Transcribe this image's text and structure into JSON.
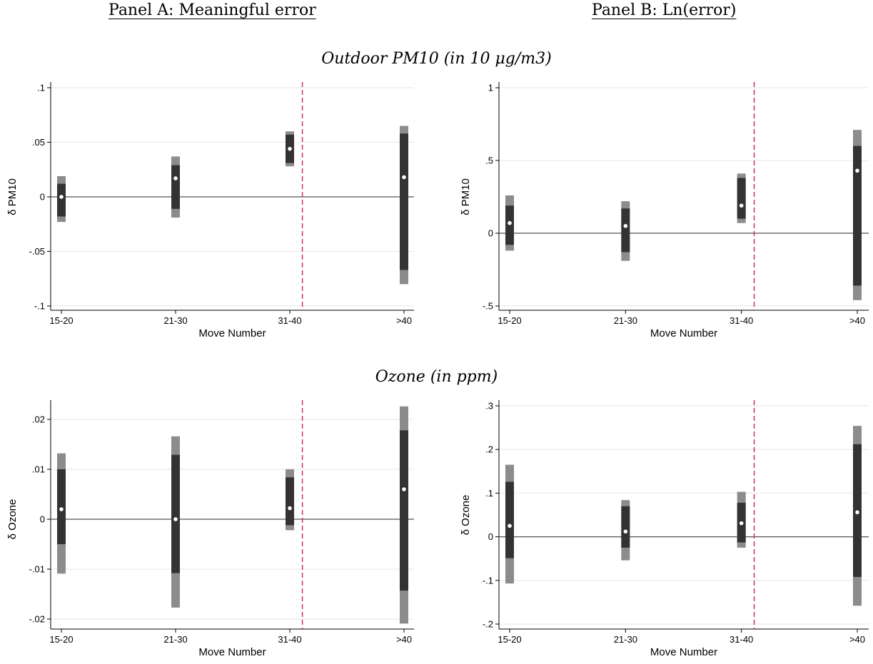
{
  "panels": {
    "a_title": "Panel A: Meaningful error",
    "b_title": "Panel B: Ln(error)"
  },
  "sections": {
    "top": "Outdoor PM10 (in 10 μg/m3)",
    "bottom": "Ozone (in ppm)"
  },
  "colors": {
    "outer_ci": "#8c8c8c",
    "inner_ci": "#333333",
    "point_fill": "#ffffff",
    "zero_line": "#555555",
    "cutoff_line": "#c8325a",
    "grid": "#e6e6e6"
  },
  "chart_data": [
    {
      "type": "scatter",
      "panel": "Panel A: Meaningful error",
      "section": "Outdoor PM10 (in 10 μg/m3)",
      "xlabel": "Move Number",
      "ylabel": "δ PM10",
      "categories": [
        "15-20",
        "21-30",
        "31-40",
        ">40"
      ],
      "ylim": [
        -0.1,
        0.1
      ],
      "yticks": [
        -0.1,
        -0.05,
        0,
        0.05,
        0.1
      ],
      "yticklabels": [
        "-.1",
        "-.05",
        "0",
        ".05",
        ".1"
      ],
      "grid": true,
      "cutoff_after": "31-40",
      "series": [
        {
          "estimate": [
            0.0,
            0.017,
            0.044,
            0.018
          ],
          "ci_inner": [
            [
              -0.018,
              0.012
            ],
            [
              -0.011,
              0.029
            ],
            [
              0.031,
              0.057
            ],
            [
              -0.067,
              0.058
            ]
          ],
          "ci_outer": [
            [
              -0.023,
              0.019
            ],
            [
              -0.019,
              0.037
            ],
            [
              0.028,
              0.06
            ],
            [
              -0.08,
              0.065
            ]
          ]
        }
      ]
    },
    {
      "type": "scatter",
      "panel": "Panel B: Ln(error)",
      "section": "Outdoor PM10 (in 10 μg/m3)",
      "xlabel": "Move Number",
      "ylabel": "δ PM10",
      "categories": [
        "15-20",
        "21-30",
        "31-40",
        ">40"
      ],
      "ylim": [
        -0.5,
        1.0
      ],
      "yticks": [
        -0.5,
        0,
        0.5,
        1
      ],
      "yticklabels": [
        "-.5",
        "0",
        ".5",
        "1"
      ],
      "grid": true,
      "cutoff_after": "31-40",
      "series": [
        {
          "estimate": [
            0.07,
            0.05,
            0.19,
            0.43
          ],
          "ci_inner": [
            [
              -0.08,
              0.19
            ],
            [
              -0.13,
              0.17
            ],
            [
              0.1,
              0.38
            ],
            [
              -0.36,
              0.6
            ]
          ],
          "ci_outer": [
            [
              -0.12,
              0.26
            ],
            [
              -0.19,
              0.22
            ],
            [
              0.07,
              0.41
            ],
            [
              -0.46,
              0.71
            ]
          ]
        }
      ]
    },
    {
      "type": "scatter",
      "panel": "Panel A: Meaningful error",
      "section": "Ozone (in ppm)",
      "xlabel": "Move Number",
      "ylabel": "δ Ozone",
      "categories": [
        "15-20",
        "21-30",
        "31-40",
        ">40"
      ],
      "ylim": [
        -0.02,
        0.02
      ],
      "yticks": [
        -0.02,
        -0.01,
        0,
        0.01,
        0.02
      ],
      "yticklabels": [
        "-.02",
        "-.01",
        "0",
        ".01",
        ".02"
      ],
      "grid": true,
      "cutoff_after": "31-40",
      "series": [
        {
          "estimate": [
            0.002,
            0.0,
            0.0022,
            0.006
          ],
          "ci_inner": [
            [
              -0.005,
              0.01
            ],
            [
              -0.0108,
              0.0129
            ],
            [
              -0.0012,
              0.0084
            ],
            [
              -0.0143,
              0.0178
            ]
          ],
          "ci_outer": [
            [
              -0.0109,
              0.0132
            ],
            [
              -0.0177,
              0.0166
            ],
            [
              -0.0022,
              0.01
            ],
            [
              -0.0209,
              0.0226
            ]
          ]
        }
      ]
    },
    {
      "type": "scatter",
      "panel": "Panel B: Ln(error)",
      "section": "Ozone (in ppm)",
      "xlabel": "Move Number",
      "ylabel": "δ Ozone",
      "categories": [
        "15-20",
        "21-30",
        "31-40",
        ">40"
      ],
      "ylim": [
        -0.2,
        0.3
      ],
      "yticks": [
        -0.2,
        -0.1,
        0,
        0.1,
        0.2,
        0.3
      ],
      "yticklabels": [
        "-.2",
        "-.1",
        "0",
        ".1",
        ".2",
        ".3"
      ],
      "grid": true,
      "cutoff_after": "31-40",
      "series": [
        {
          "estimate": [
            0.025,
            0.012,
            0.031,
            0.056
          ],
          "ci_inner": [
            [
              -0.049,
              0.126
            ],
            [
              -0.025,
              0.07
            ],
            [
              -0.013,
              0.078
            ],
            [
              -0.092,
              0.212
            ]
          ],
          "ci_outer": [
            [
              -0.107,
              0.165
            ],
            [
              -0.054,
              0.084
            ],
            [
              -0.025,
              0.103
            ],
            [
              -0.158,
              0.254
            ]
          ]
        }
      ]
    }
  ]
}
